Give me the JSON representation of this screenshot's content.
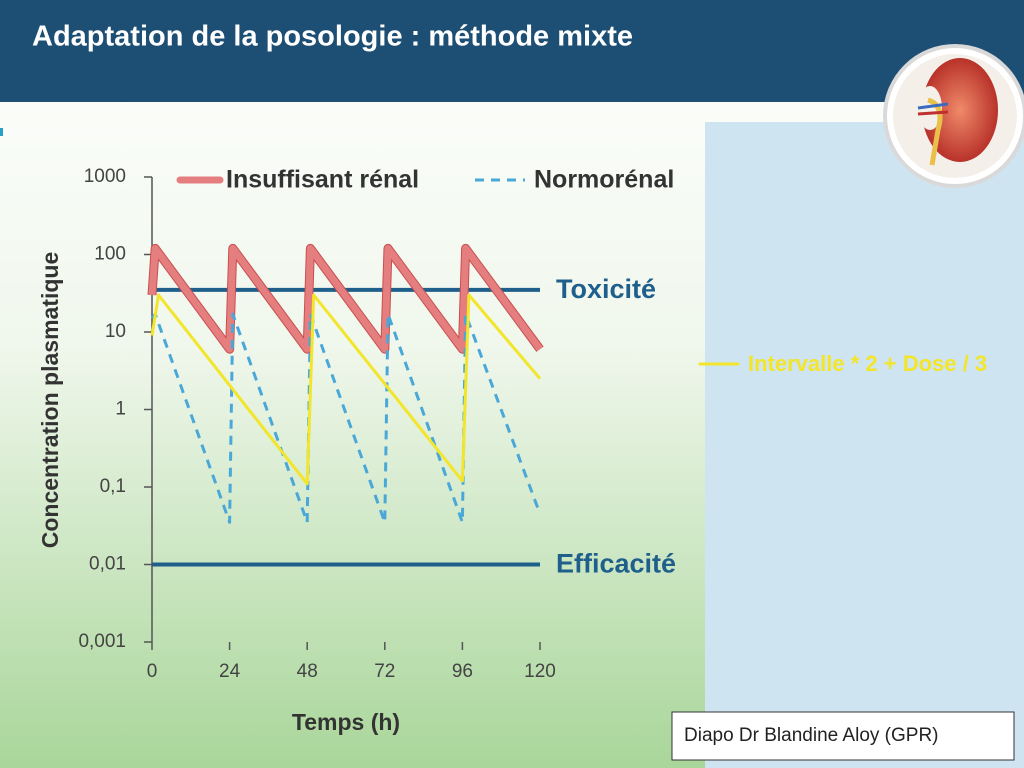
{
  "title": "Adaptation de la posologie : méthode mixte",
  "credit": "Diapo Dr Blandine Aloy (GPR)",
  "chart_data": {
    "type": "line",
    "y_label": "Concentration plasmatique",
    "x_label": "Temps (h)",
    "log_y": true,
    "xlim": [
      0,
      120
    ],
    "xticks": [
      0,
      24,
      48,
      72,
      96,
      120
    ],
    "ylim": [
      0.001,
      1000
    ],
    "yticks": [
      {
        "value": 0.001,
        "label": "0,001"
      },
      {
        "value": 0.01,
        "label": "0,01"
      },
      {
        "value": 0.1,
        "label": "0,1"
      },
      1,
      10,
      100,
      1000
    ],
    "series": [
      {
        "name": "Insuffisant rénal",
        "color": "#e57f7f",
        "line_style": "solid",
        "line_width": 7,
        "x": [
          0,
          1,
          24,
          25,
          48,
          49,
          72,
          73,
          96,
          97,
          120
        ],
        "values": [
          30,
          120,
          6,
          120,
          6,
          120,
          6,
          120,
          6,
          120,
          6
        ]
      },
      {
        "name": "Normorénal",
        "color": "#4aa8d8",
        "line_style": "dashed",
        "line_width": 3,
        "x": [
          0,
          1,
          24,
          25,
          48,
          49,
          72,
          73,
          96,
          97,
          120
        ],
        "values": [
          15,
          17,
          0.035,
          17,
          0.035,
          17,
          0.035,
          17,
          0.035,
          17,
          0.045
        ]
      },
      {
        "name": "Intervalle * 2 + Dose / 3",
        "color": "#f2e52a",
        "line_style": "solid",
        "line_width": 3,
        "x": [
          0,
          2,
          48,
          50,
          96,
          98,
          120
        ],
        "values": [
          9,
          30,
          0.11,
          30,
          0.12,
          30,
          2.5
        ]
      }
    ],
    "annotations": [
      {
        "text": "Toxicité",
        "y": 35,
        "color": "#1f5f8b"
      },
      {
        "text": "Efficacité",
        "y": 0.01,
        "color": "#1f5f8b"
      }
    ]
  }
}
